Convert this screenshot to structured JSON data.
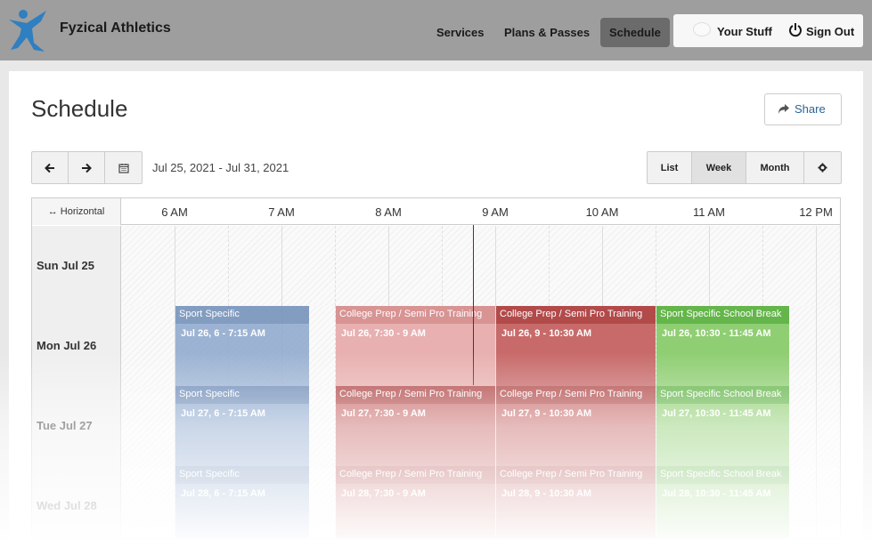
{
  "brand": {
    "name": "Fyzical Athletics"
  },
  "nav": {
    "items": [
      {
        "label": "Services"
      },
      {
        "label": "Plans & Passes"
      },
      {
        "label": "Schedule"
      }
    ],
    "your_stuff": "Your Stuff",
    "sign_out": "Sign Out"
  },
  "page": {
    "title": "Schedule",
    "share_label": "Share"
  },
  "toolbar": {
    "date_range": "Jul 25, 2021 - Jul 31, 2021",
    "views": [
      {
        "label": "List"
      },
      {
        "label": "Week",
        "active": true
      },
      {
        "label": "Month"
      }
    ]
  },
  "grid": {
    "orientation_label": "↔ Horizontal",
    "times": [
      "6 AM",
      "7 AM",
      "8 AM",
      "9 AM",
      "10 AM",
      "11 AM",
      "12 PM"
    ],
    "days": [
      {
        "label": "Sun Jul 25",
        "events": []
      },
      {
        "label": "Mon Jul 26",
        "events": [
          {
            "title": "Sport Specific",
            "time": "Jul 26, 6 - 7:15 AM"
          },
          {
            "title": "College Prep / Semi Pro Training",
            "time": "Jul 26, 7:30 - 9 AM"
          },
          {
            "title": "College Prep / Semi Pro Training",
            "time": "Jul 26, 9 - 10:30 AM"
          },
          {
            "title": "Sport Specific School Break",
            "time": "Jul 26, 10:30 - 11:45 AM"
          }
        ]
      },
      {
        "label": "Tue Jul 27",
        "events": [
          {
            "title": "Sport Specific",
            "time": "Jul 27, 6 - 7:15 AM"
          },
          {
            "title": "College Prep / Semi Pro Training",
            "time": "Jul 27, 7:30 - 9 AM"
          },
          {
            "title": "College Prep / Semi Pro Training",
            "time": "Jul 27, 9 - 10:30 AM"
          },
          {
            "title": "Sport Specific School Break",
            "time": "Jul 27, 10:30 - 11:45 AM"
          }
        ]
      },
      {
        "label": "Wed Jul 28",
        "events": [
          {
            "title": "Sport Specific",
            "time": "Jul 28, 6 - 7:15 AM"
          },
          {
            "title": "College Prep / Semi Pro Training",
            "time": "Jul 28, 7:30 - 9 AM"
          },
          {
            "title": "College Prep / Semi Pro Training",
            "time": "Jul 28, 9 - 10:30 AM"
          },
          {
            "title": "Sport Specific School Break",
            "time": "Jul 28, 10:30 - 11:45 AM"
          }
        ]
      }
    ]
  },
  "colors": {
    "sport_specific": "#8ca7cd",
    "college_prep_past": "#e8b0b0",
    "college_prep": "#c86a6a",
    "school_break": "#8fce72",
    "now_line": "#8b1c1c",
    "topbar": "#9e9e9e"
  },
  "icons": [
    "logo-icon",
    "avatar-icon",
    "power-icon",
    "share-icon",
    "arrow-left-icon",
    "arrow-right-icon",
    "calendar-icon",
    "gear-icon"
  ]
}
